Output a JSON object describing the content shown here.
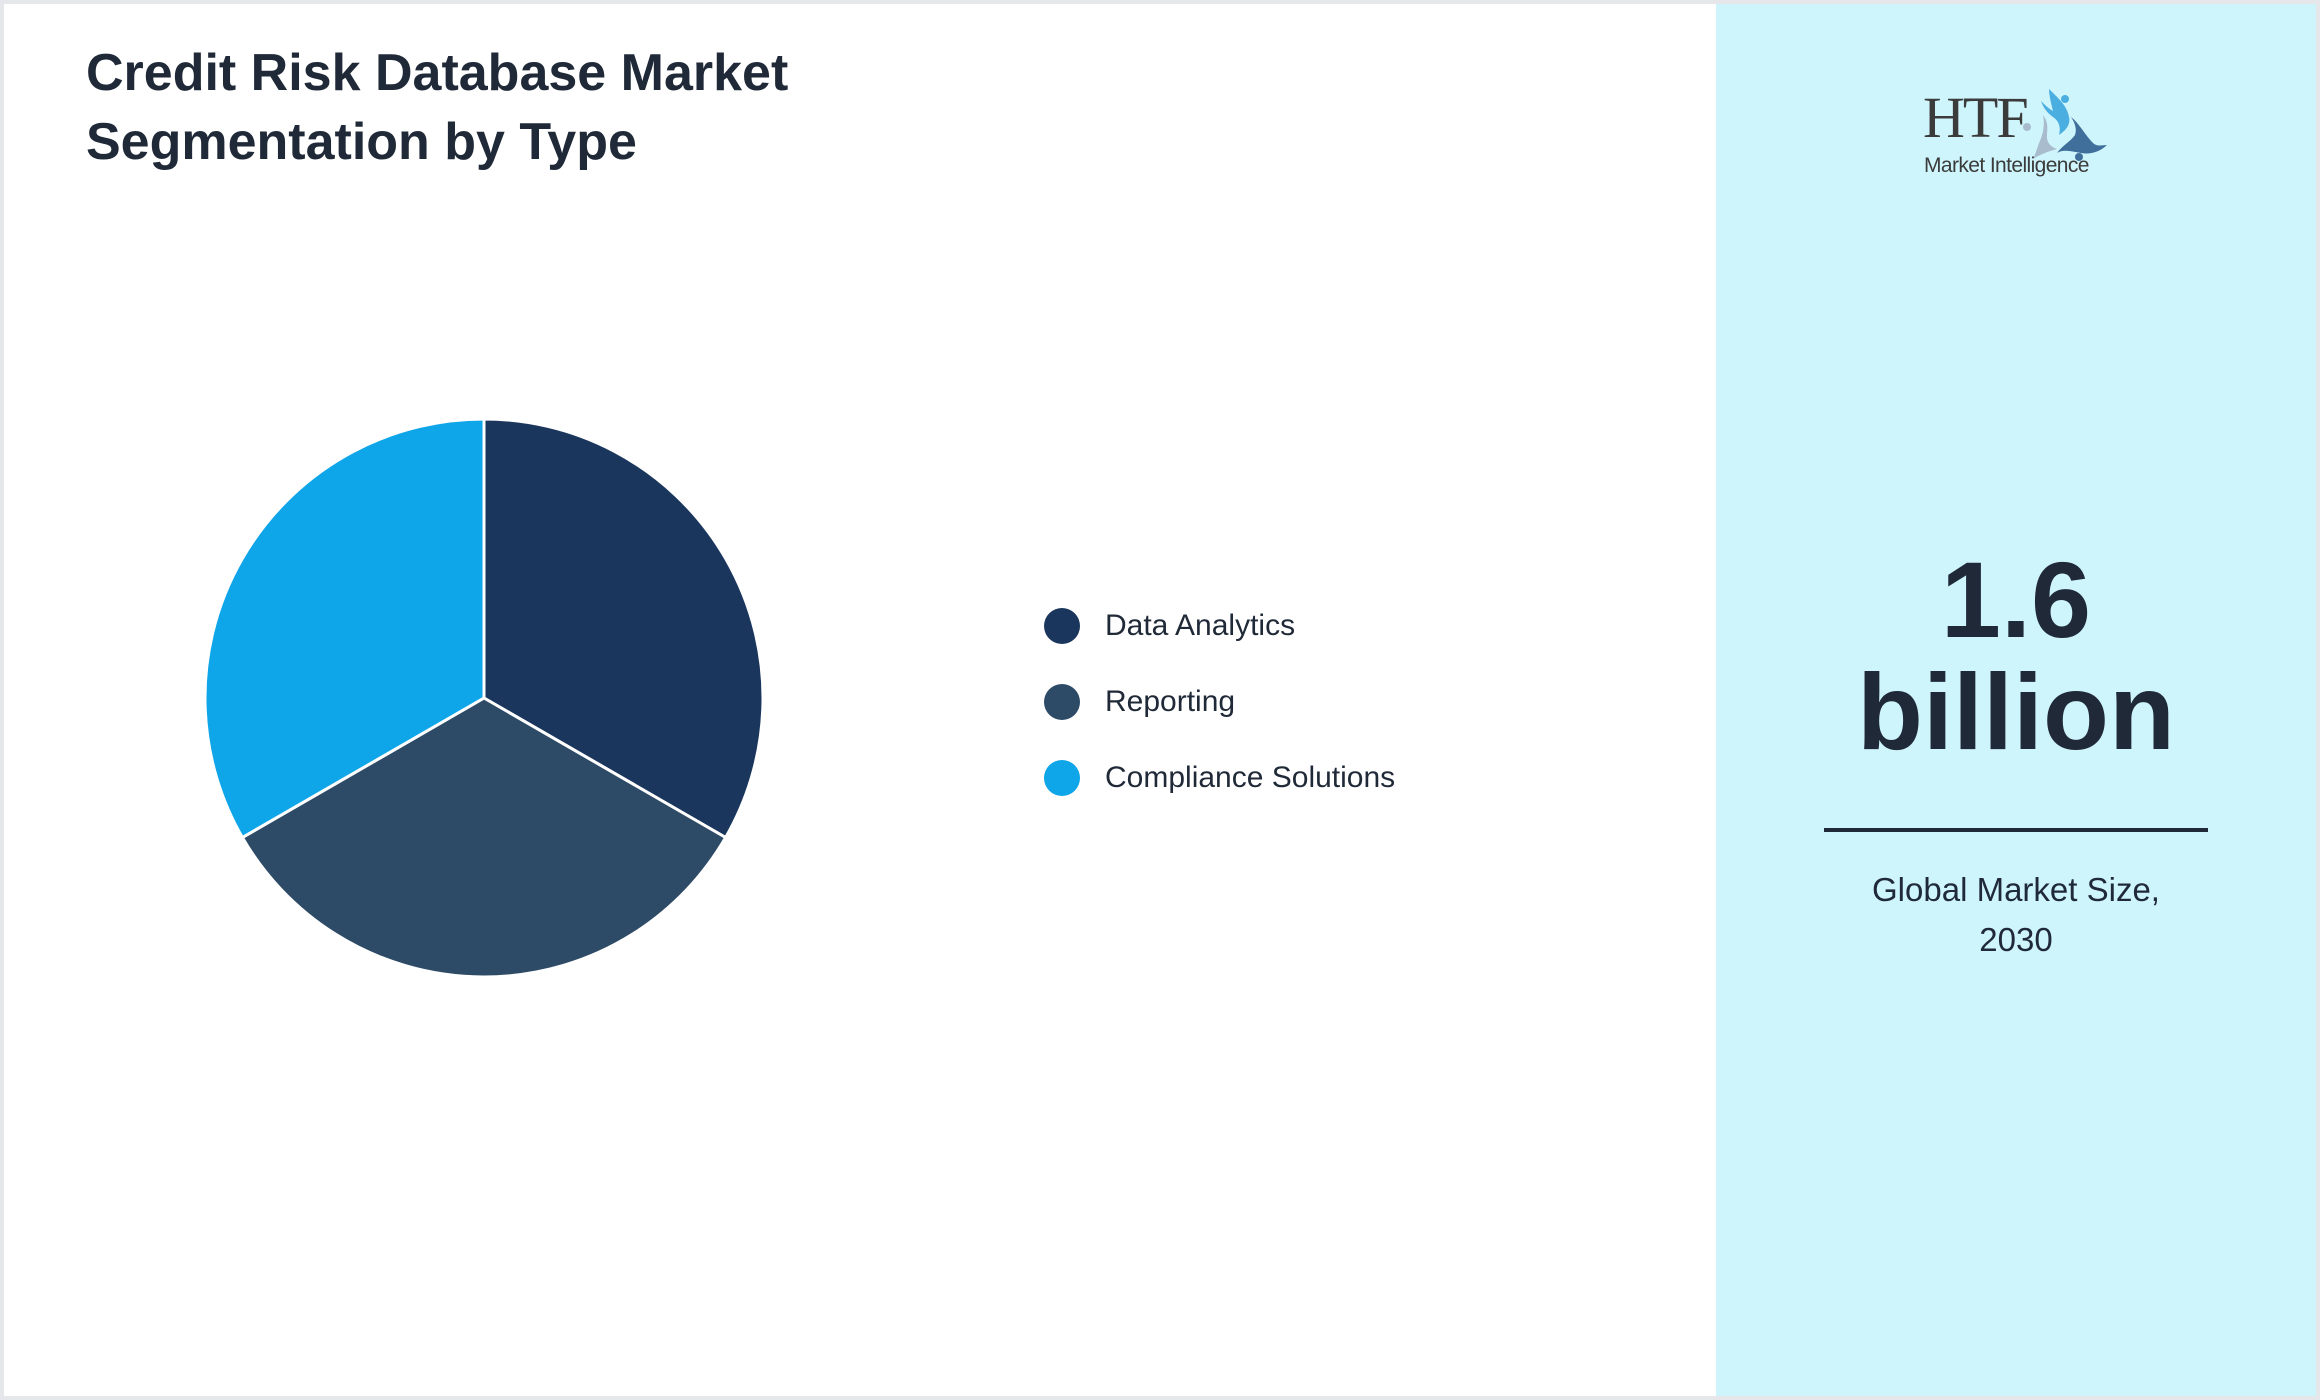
{
  "title": {
    "line1": "Credit Risk Database Market",
    "line2": "Segmentation by Type"
  },
  "legend": [
    {
      "label": "Data Analytics",
      "color": "#1b365d"
    },
    {
      "label": "Reporting",
      "color": "#2d4a66"
    },
    {
      "label": "Compliance Solutions",
      "color": "#0ea5e9"
    }
  ],
  "panel": {
    "logo": {
      "brand": "HTF",
      "tagline": "Market Intelligence",
      "icon": "htf-swirl-logo-icon"
    },
    "stat": {
      "value": "1.6",
      "unit": "billion"
    },
    "caption": {
      "line1": "Global Market Size,",
      "line2": "2030"
    },
    "background": "#cff5fc"
  },
  "chart_data": {
    "type": "pie",
    "title": "Credit Risk Database Market Segmentation by Type",
    "categories": [
      "Data Analytics",
      "Reporting",
      "Compliance Solutions"
    ],
    "values": [
      33.33,
      33.33,
      33.33
    ],
    "colors": [
      "#1b365d",
      "#2d4a66",
      "#0ea5e9"
    ],
    "start_angle": "12 o'clock, clockwise",
    "legend_position": "right",
    "annotation": "1.6 billion — Global Market Size, 2030"
  }
}
